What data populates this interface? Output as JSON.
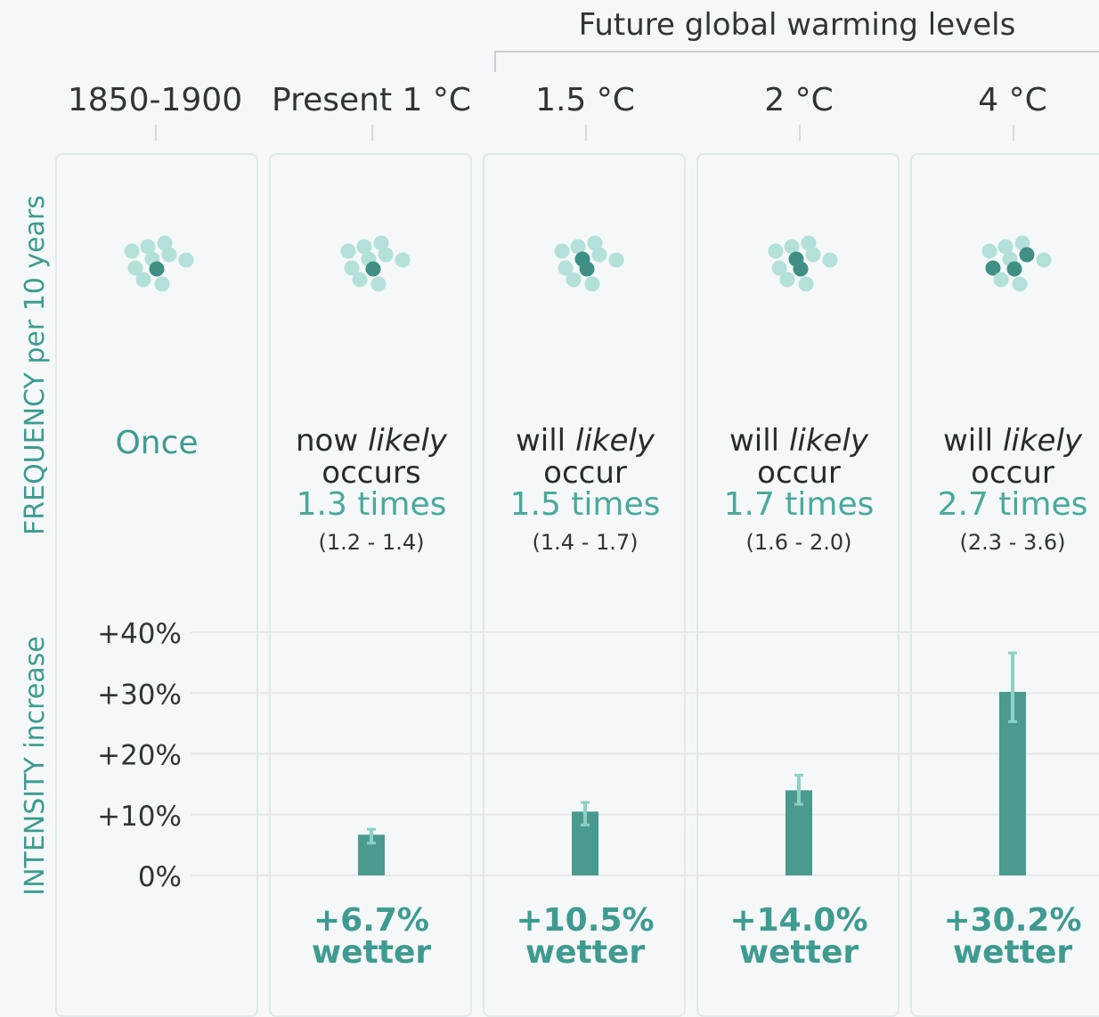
{
  "header": {
    "future_title": "Future global warming levels",
    "columns": [
      "1850-1900",
      "Present 1 °C",
      "1.5 °C",
      "2 °C",
      "4 °C"
    ]
  },
  "frequency": {
    "axis_label": "FREQUENCY per 10 years",
    "baseline_text": "Once",
    "entries": [
      {
        "line1_a": "now ",
        "line1_em": "likely",
        "line2": "occurs",
        "times": "1.3 times",
        "range": "(1.2 - 1.4)",
        "events": 1
      },
      {
        "line1_a": "will ",
        "line1_em": "likely",
        "line2": "occur",
        "times": "1.5 times",
        "range": "(1.4 - 1.7)",
        "events": 2
      },
      {
        "line1_a": "will ",
        "line1_em": "likely",
        "line2": "occur",
        "times": "1.7 times",
        "range": "(1.6 - 2.0)",
        "events": 2
      },
      {
        "line1_a": "will ",
        "line1_em": "likely",
        "line2": "occur",
        "times": "2.7 times",
        "range": "(2.3 - 3.6)",
        "events": 3
      }
    ]
  },
  "intensity": {
    "axis_label": "INTENSITY increase",
    "labels": [
      {
        "value": "+6.7%",
        "word": "wetter"
      },
      {
        "value": "+10.5%",
        "word": "wetter"
      },
      {
        "value": "+14.0%",
        "word": "wetter"
      },
      {
        "value": "+30.2%",
        "word": "wetter"
      }
    ]
  },
  "chart_data": {
    "type": "bar",
    "categories": [
      "1850-1900",
      "Present 1 °C",
      "1.5 °C",
      "2 °C",
      "4 °C"
    ],
    "values": [
      null,
      6.7,
      10.5,
      14.0,
      30.2
    ],
    "error_low": [
      null,
      5.3,
      8.3,
      11.7,
      25.3
    ],
    "error_high": [
      null,
      7.6,
      12.0,
      16.5,
      36.6
    ],
    "ylim": [
      0,
      40
    ],
    "yticks": [
      0,
      10,
      20,
      30,
      40
    ],
    "ytick_labels": [
      "0%",
      "+10%",
      "+20%",
      "+30%",
      "+40%"
    ],
    "ylabel": "INTENSITY increase",
    "grid": true
  },
  "colors": {
    "bar": "#4a9a8f",
    "dot_light": "#b4e0da",
    "dot_dark": "#3f8f85",
    "accent_text": "#3f9a90",
    "error_bar": "#8fd0c6"
  }
}
